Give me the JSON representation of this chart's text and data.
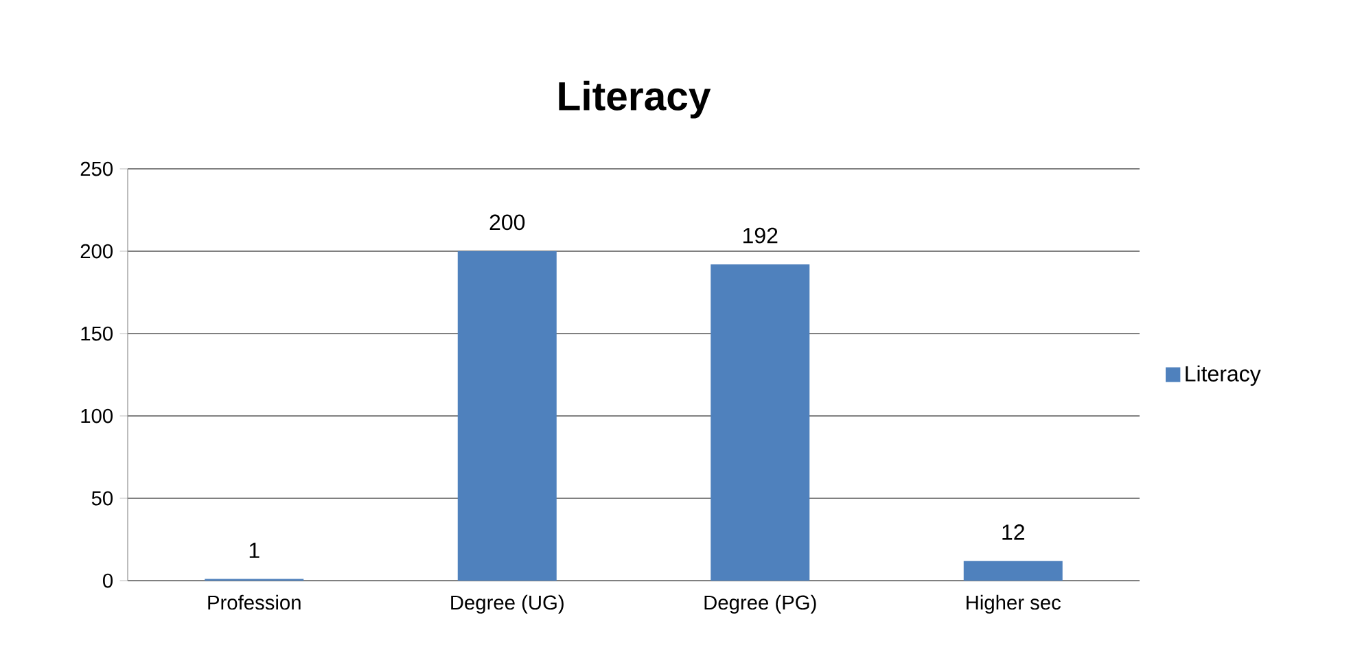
{
  "chart_data": {
    "type": "bar",
    "title": "Literacy",
    "categories": [
      "Profession",
      "Degree (UG)",
      "Degree (PG)",
      "Higher sec"
    ],
    "series": [
      {
        "name": "Literacy",
        "color": "#4f81bd",
        "values": [
          1,
          200,
          192,
          12
        ]
      }
    ],
    "ylim": [
      0,
      250
    ],
    "yticks": [
      0,
      50,
      100,
      150,
      200,
      250
    ],
    "grid": "y",
    "legend": "right",
    "data_labels": true
  }
}
